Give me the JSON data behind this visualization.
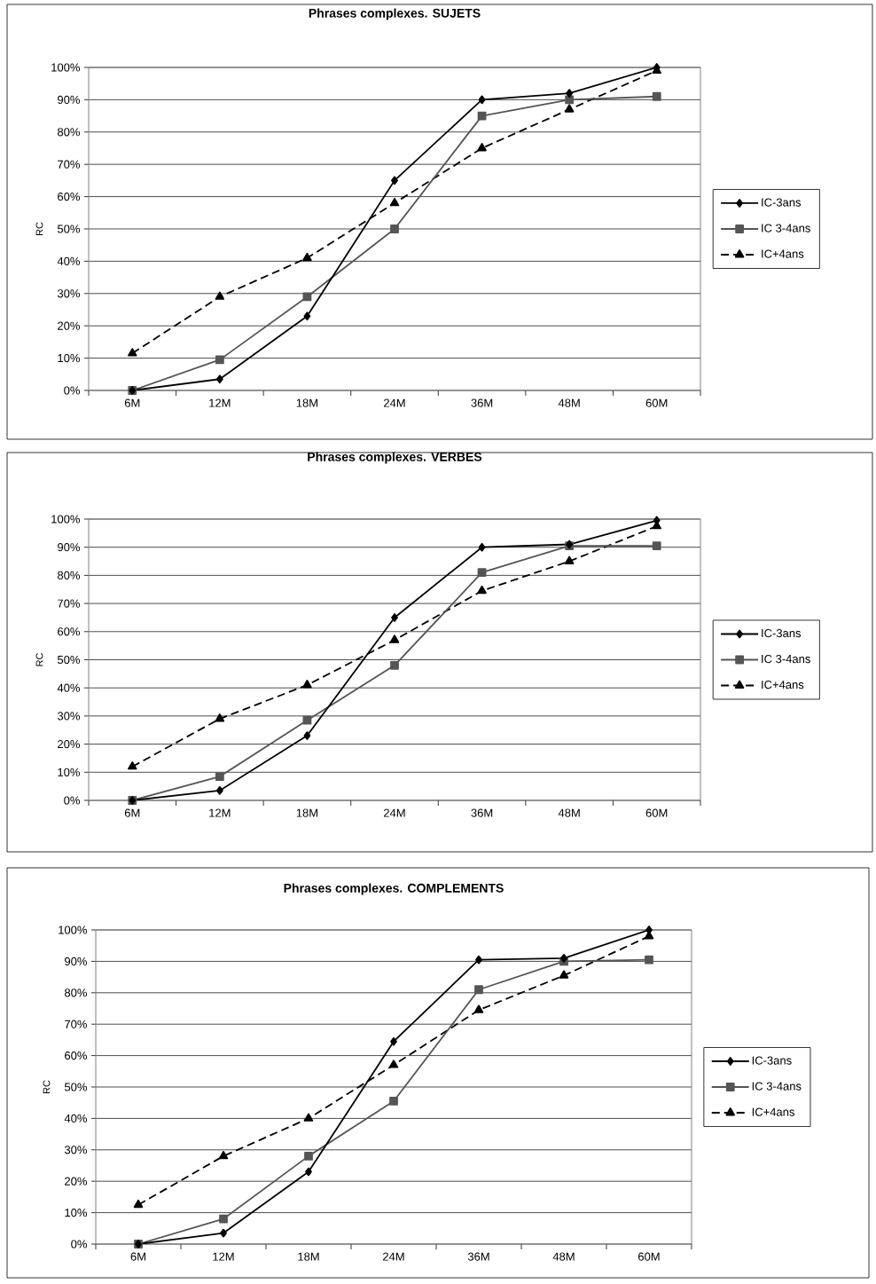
{
  "chart_data": [
    {
      "type": "line",
      "title": "Phrases complexes. SUJETS",
      "ylabel": "RC",
      "categories": [
        "6M",
        "12M",
        "18M",
        "24M",
        "36M",
        "48M",
        "60M"
      ],
      "ylim": [
        0,
        100
      ],
      "yticks": [
        {
          "value": 0,
          "label": "0%"
        },
        {
          "value": 10,
          "label": "10%"
        },
        {
          "value": 20,
          "label": "20%"
        },
        {
          "value": 30,
          "label": "30%"
        },
        {
          "value": 40,
          "label": "40%"
        },
        {
          "value": 50,
          "label": "50%"
        },
        {
          "value": 60,
          "label": "60%"
        },
        {
          "value": 70,
          "label": "70%"
        },
        {
          "value": 80,
          "label": "80%"
        },
        {
          "value": 90,
          "label": "90%"
        },
        {
          "value": 100,
          "label": "100%"
        }
      ],
      "grid": "y",
      "legend": "right",
      "series": [
        {
          "name": "IC-3ans",
          "color": "#000000",
          "marker": "diamond",
          "line_style": "solid",
          "values": [
            0,
            3.5,
            23,
            65,
            90,
            92,
            100
          ]
        },
        {
          "name": "IC 3-4ans",
          "color": "#555555",
          "marker": "square",
          "line_style": "solid",
          "values": [
            0,
            9.5,
            29,
            50,
            85,
            90,
            91
          ]
        },
        {
          "name": "IC+4ans",
          "color": "#000000",
          "marker": "triangle",
          "line_style": "dashed",
          "values": [
            11.5,
            29,
            41,
            58,
            75,
            87,
            99
          ]
        }
      ]
    },
    {
      "type": "line",
      "title": "Phrases complexes. VERBES",
      "ylabel": "RC",
      "categories": [
        "6M",
        "12M",
        "18M",
        "24M",
        "36M",
        "48M",
        "60M"
      ],
      "ylim": [
        0,
        100
      ],
      "yticks": [
        {
          "value": 0,
          "label": "0%"
        },
        {
          "value": 10,
          "label": "10%"
        },
        {
          "value": 20,
          "label": "20%"
        },
        {
          "value": 30,
          "label": "30%"
        },
        {
          "value": 40,
          "label": "40%"
        },
        {
          "value": 50,
          "label": "50%"
        },
        {
          "value": 60,
          "label": "60%"
        },
        {
          "value": 70,
          "label": "70%"
        },
        {
          "value": 80,
          "label": "80%"
        },
        {
          "value": 90,
          "label": "90%"
        },
        {
          "value": 100,
          "label": "100%"
        }
      ],
      "grid": "y",
      "legend": "right",
      "series": [
        {
          "name": "IC-3ans",
          "color": "#000000",
          "marker": "diamond",
          "line_style": "solid",
          "values": [
            0,
            3.5,
            23,
            65,
            90,
            91,
            99.5
          ]
        },
        {
          "name": "IC 3-4ans",
          "color": "#555555",
          "marker": "square",
          "line_style": "solid",
          "values": [
            0,
            8.5,
            28.5,
            48,
            81,
            90.5,
            90.5
          ]
        },
        {
          "name": "IC+4ans",
          "color": "#000000",
          "marker": "triangle",
          "line_style": "dashed",
          "values": [
            12,
            29,
            41,
            57,
            74.5,
            85,
            97.5
          ]
        }
      ]
    },
    {
      "type": "line",
      "title": "Phrases complexes. COMPLEMENTS",
      "ylabel": "RC",
      "categories": [
        "6M",
        "12M",
        "18M",
        "24M",
        "36M",
        "48M",
        "60M"
      ],
      "ylim": [
        0,
        100
      ],
      "yticks": [
        {
          "value": 0,
          "label": "0%"
        },
        {
          "value": 10,
          "label": "10%"
        },
        {
          "value": 20,
          "label": "20%"
        },
        {
          "value": 30,
          "label": "30%"
        },
        {
          "value": 40,
          "label": "40%"
        },
        {
          "value": 50,
          "label": "50%"
        },
        {
          "value": 60,
          "label": "60%"
        },
        {
          "value": 70,
          "label": "70%"
        },
        {
          "value": 80,
          "label": "80%"
        },
        {
          "value": 90,
          "label": "90%"
        },
        {
          "value": 100,
          "label": "100%"
        }
      ],
      "grid": "y",
      "legend": "right",
      "series": [
        {
          "name": "IC-3ans",
          "color": "#000000",
          "marker": "diamond",
          "line_style": "solid",
          "values": [
            0,
            3.5,
            23,
            64.5,
            90.5,
            91,
            100
          ]
        },
        {
          "name": "IC 3-4ans",
          "color": "#555555",
          "marker": "square",
          "line_style": "solid",
          "values": [
            0,
            8,
            28,
            45.5,
            81,
            90,
            90.5
          ]
        },
        {
          "name": "IC+4ans",
          "color": "#000000",
          "marker": "triangle",
          "line_style": "dashed",
          "values": [
            12.5,
            28,
            40,
            57,
            74.5,
            85.5,
            98
          ]
        }
      ]
    }
  ]
}
